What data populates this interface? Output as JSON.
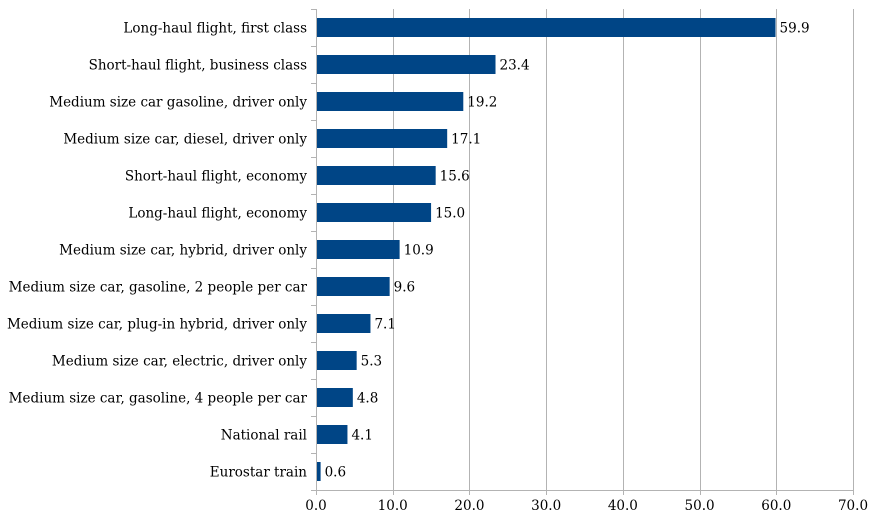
{
  "chart_data": {
    "type": "bar",
    "orientation": "horizontal",
    "title": "",
    "xlabel": "",
    "ylabel": "",
    "categories": [
      "Long-haul flight, first class",
      "Short-haul flight, business class",
      "Medium size car gasoline, driver only",
      "Medium size car, diesel, driver only",
      "Short-haul flight, economy",
      "Long-haul flight, economy",
      "Medium size car, hybrid, driver only",
      "Medium size car, gasoline, 2 people per car",
      "Medium size car, plug-in hybrid, driver only",
      "Medium size car, electric, driver only",
      "Medium size car, gasoline, 4 people per car",
      "National rail",
      "Eurostar train"
    ],
    "values": [
      59.9,
      23.4,
      19.2,
      17.1,
      15.6,
      15.0,
      10.9,
      9.6,
      7.1,
      5.3,
      4.8,
      4.1,
      0.6
    ],
    "value_labels": [
      "59.9",
      "23.4",
      "19.2",
      "17.1",
      "15.6",
      "15.0",
      "10.9",
      "9.6",
      "7.1",
      "5.3",
      "4.8",
      "4.1",
      "0.6"
    ],
    "xlim": [
      0,
      70
    ],
    "xticks": [
      "0.0",
      "10.0",
      "20.0",
      "30.0",
      "40.0",
      "50.0",
      "60.0",
      "70.0"
    ],
    "xtick_values": [
      0,
      10,
      20,
      30,
      40,
      50,
      60,
      70
    ],
    "grid": "vertical",
    "legend": "none",
    "bar_color": "#004586",
    "grid_color": "#b3b3b3"
  }
}
